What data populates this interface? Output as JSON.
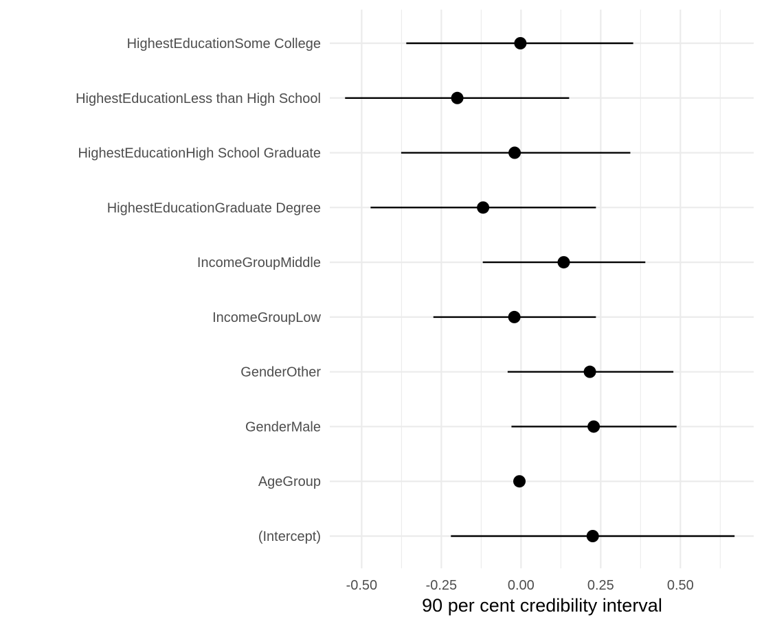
{
  "chart_data": {
    "type": "scatter",
    "subtype": "point-range",
    "title": "",
    "xlabel": "90 per cent credibility interval",
    "ylabel": "",
    "xlim": [
      -0.6,
      0.73
    ],
    "xticks": [
      -0.5,
      -0.25,
      0.0,
      0.25,
      0.5
    ],
    "xtick_labels": [
      "-0.50",
      "-0.25",
      "0.00",
      "0.25",
      "0.50"
    ],
    "grid": true,
    "legend": "none",
    "point_color": "#000000",
    "grid_color": "#ebebeb",
    "terms": [
      {
        "label": "(Intercept)",
        "estimate": 0.225,
        "lower": -0.22,
        "upper": 0.67
      },
      {
        "label": "AgeGroup",
        "estimate": -0.005,
        "lower": -0.005,
        "upper": -0.005
      },
      {
        "label": "GenderMale",
        "estimate": 0.228,
        "lower": -0.03,
        "upper": 0.488
      },
      {
        "label": "GenderOther",
        "estimate": 0.216,
        "lower": -0.042,
        "upper": 0.478
      },
      {
        "label": "IncomeGroupLow",
        "estimate": -0.021,
        "lower": -0.275,
        "upper": 0.235
      },
      {
        "label": "IncomeGroupMiddle",
        "estimate": 0.134,
        "lower": -0.12,
        "upper": 0.39
      },
      {
        "label": "HighestEducationGraduate Degree",
        "estimate": -0.119,
        "lower": -0.472,
        "upper": 0.235
      },
      {
        "label": "HighestEducationHigh School Graduate",
        "estimate": -0.02,
        "lower": -0.376,
        "upper": 0.343
      },
      {
        "label": "HighestEducationLess than High School",
        "estimate": -0.2,
        "lower": -0.552,
        "upper": 0.151
      },
      {
        "label": "HighestEducationSome College",
        "estimate": -0.002,
        "lower": -0.36,
        "upper": 0.352
      }
    ]
  }
}
